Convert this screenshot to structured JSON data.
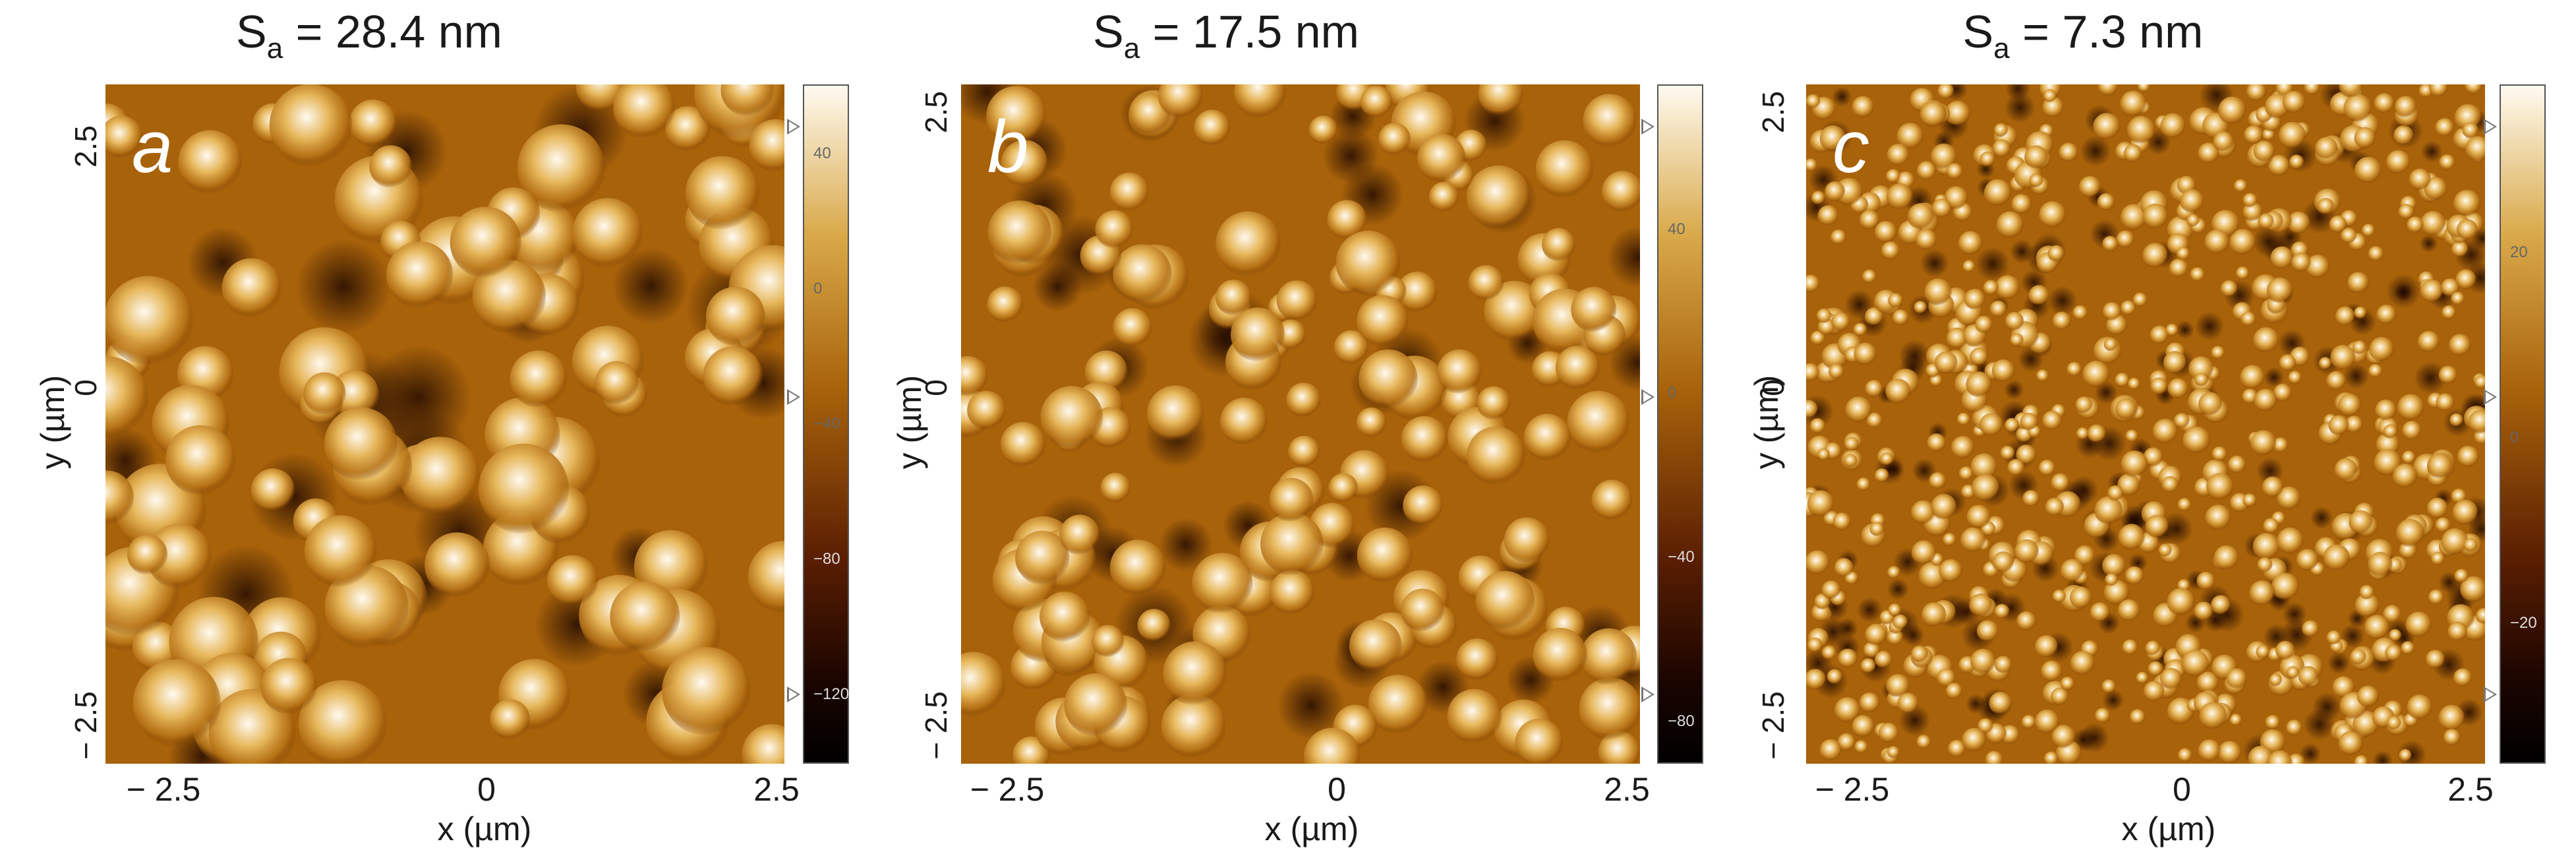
{
  "panels": [
    {
      "id": "a",
      "title_main": "S",
      "title_sub": "a",
      "title_rest": " = 28.4 nm",
      "letter": "a",
      "y_label": "y (µm)",
      "x_label": "x (µm)",
      "x_ticks": [
        "− 2.5",
        "0",
        "2.5"
      ],
      "y_ticks": [
        "2.5",
        "0",
        "− 2.5"
      ],
      "colorbar_ticks": [
        "40",
        "0",
        "−40",
        "−80",
        "−120"
      ],
      "colorbar_tick_values": [
        40,
        0,
        -40,
        -80,
        -120
      ],
      "colorbar_range": [
        -140,
        60
      ],
      "colors": {
        "low": "#1a0500",
        "mid": "#a8620a",
        "high": "#fffaf0"
      },
      "grain_count": 95,
      "grain_size_nm": 420
    },
    {
      "id": "b",
      "title_main": "S",
      "title_sub": "a",
      "title_rest": " = 17.5 nm",
      "letter": "b",
      "y_label": "y (µm)",
      "x_label": "x (µm)",
      "x_ticks": [
        "− 2.5",
        "0",
        "2.5"
      ],
      "y_ticks": [
        "2.5",
        "0",
        "− 2.5"
      ],
      "colorbar_ticks": [
        "40",
        "0",
        "−40",
        "−80"
      ],
      "colorbar_tick_values": [
        40,
        0,
        -40,
        -80
      ],
      "colorbar_range": [
        -90,
        75
      ],
      "colors": {
        "low": "#1a0500",
        "mid": "#a8620a",
        "high": "#fffaf0"
      },
      "grain_count": 150,
      "grain_size_nm": 300
    },
    {
      "id": "c",
      "title_main": "S",
      "title_sub": "a",
      "title_rest": " = 7.3 nm",
      "letter": "c",
      "y_label": "y (µm)",
      "x_label": "x (µm)",
      "x_ticks": [
        "− 2.5",
        "0",
        "2.5"
      ],
      "y_ticks": [
        "2.5",
        "0",
        "− 2.5"
      ],
      "colorbar_ticks": [
        "20",
        "0",
        "−20"
      ],
      "colorbar_tick_values": [
        20,
        0,
        -20
      ],
      "colorbar_range": [
        -35,
        38
      ],
      "colors": {
        "low": "#1a0500",
        "mid": "#a8620a",
        "high": "#fffaf0"
      },
      "grain_count": 700,
      "grain_size_nm": 130
    }
  ]
}
